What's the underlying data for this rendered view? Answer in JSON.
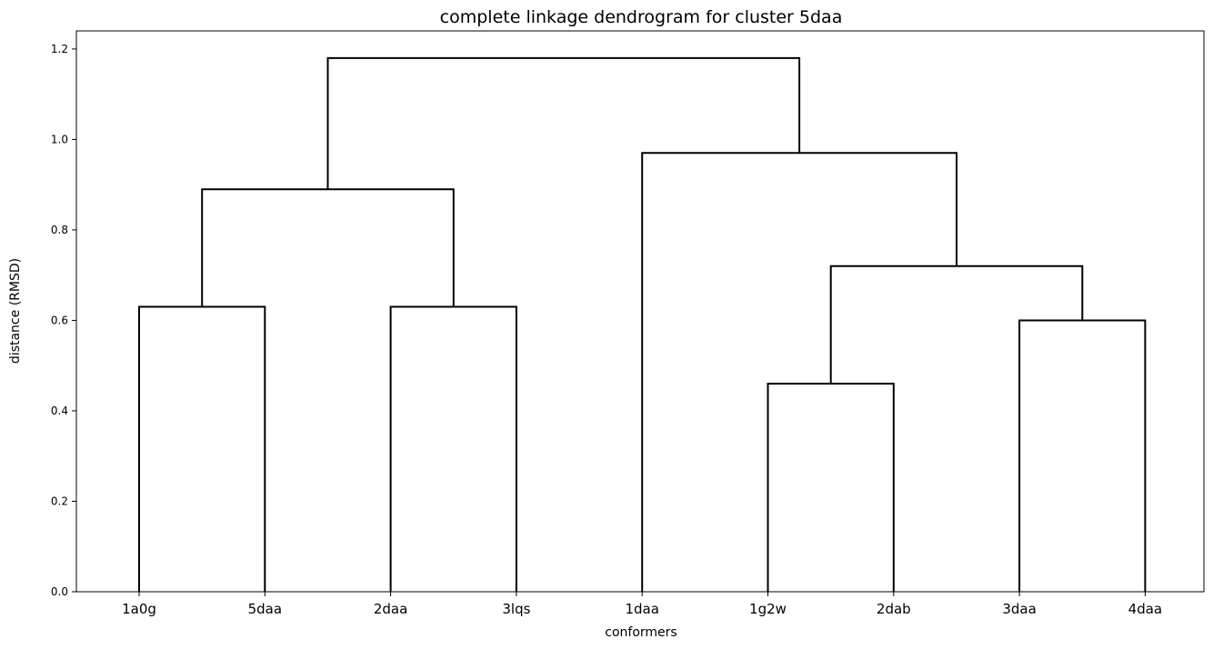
{
  "chart_data": {
    "type": "dendrogram",
    "title": "complete linkage dendrogram for cluster 5daa",
    "xlabel": "conformers",
    "ylabel": "distance (RMSD)",
    "ylim": [
      0,
      1.24
    ],
    "yticks": [
      "0.0",
      "0.2",
      "0.4",
      "0.6",
      "0.8",
      "1.0",
      "1.2"
    ],
    "leaves": [
      "1a0g",
      "5daa",
      "2daa",
      "3lqs",
      "1daa",
      "1g2w",
      "2dab",
      "3daa",
      "4daa"
    ],
    "merges": [
      {
        "left": "1a0g",
        "right": "5daa",
        "distance": 0.63
      },
      {
        "left": "2daa",
        "right": "3lqs",
        "distance": 0.63
      },
      {
        "left": "1g2w",
        "right": "2dab",
        "distance": 0.46
      },
      {
        "left": "3daa",
        "right": "4daa",
        "distance": 0.6
      },
      {
        "left": "(1g2w,2dab)",
        "right": "(3daa,4daa)",
        "distance": 0.72
      },
      {
        "left": "1daa",
        "right": "((1g2w,2dab),(3daa,4daa))",
        "distance": 0.97
      },
      {
        "left": "(1a0g,5daa)",
        "right": "(2daa,3lqs)",
        "distance": 0.89
      },
      {
        "left": "((1a0g,5daa),(2daa,3lqs))",
        "right": "(1daa,((1g2w,2dab),(3daa,4daa)))",
        "distance": 1.18
      }
    ],
    "color": "#000000"
  }
}
